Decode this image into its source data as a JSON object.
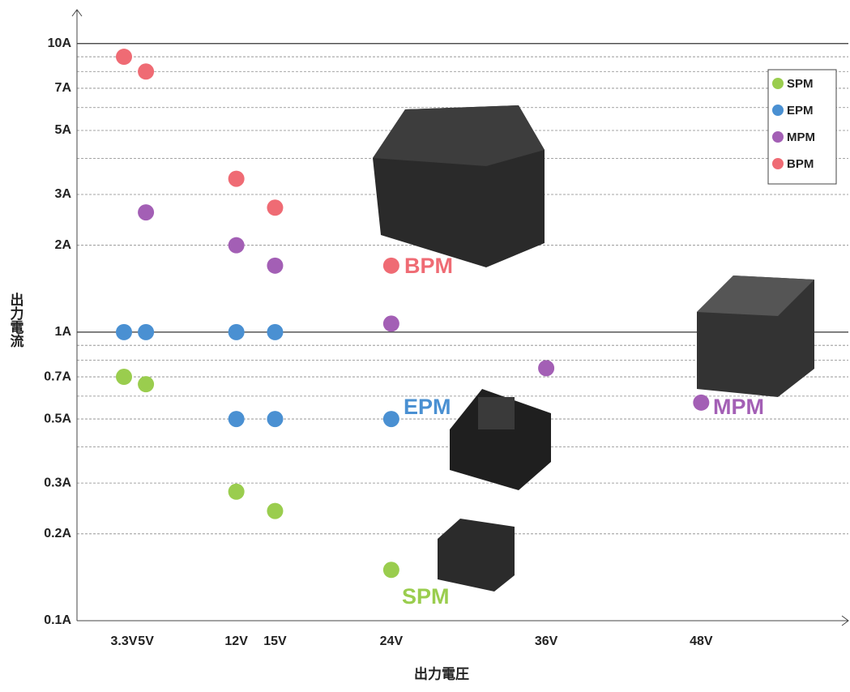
{
  "chart_data": {
    "type": "scatter",
    "ylabel": "出力電流",
    "xlabel": "出力電圧",
    "log_y": true,
    "grid": true,
    "legend": "top-right",
    "xlim": [
      -0.34,
      59.4
    ],
    "ylim": [
      0.1,
      13.1
    ],
    "xticks": [
      {
        "value": 3.3,
        "label": "3.3V"
      },
      {
        "value": 5,
        "label": "5V"
      },
      {
        "value": 12,
        "label": "12V"
      },
      {
        "value": 15,
        "label": "15V"
      },
      {
        "value": 24,
        "label": "24V"
      },
      {
        "value": 36,
        "label": "36V"
      },
      {
        "value": 48,
        "label": "48V"
      }
    ],
    "yticks": [
      {
        "value": 0.1,
        "label": "0.1A"
      },
      {
        "value": 0.2,
        "label": "0.2A"
      },
      {
        "value": 0.3,
        "label": "0.3A"
      },
      {
        "value": 0.5,
        "label": "0.5A"
      },
      {
        "value": 0.7,
        "label": "0.7A"
      },
      {
        "value": 1,
        "label": "1A"
      },
      {
        "value": 2,
        "label": "2A"
      },
      {
        "value": 3,
        "label": "3A"
      },
      {
        "value": 5,
        "label": "5A"
      },
      {
        "value": 7,
        "label": "7A"
      },
      {
        "value": 10,
        "label": "10A"
      }
    ],
    "minor_gridlines": [
      0.4,
      0.6,
      0.8,
      0.9,
      4,
      6,
      8,
      9
    ],
    "series": [
      {
        "name": "SPM",
        "color": "#9acd4e",
        "x": [
          3.3,
          5,
          12,
          15,
          24
        ],
        "values": [
          0.7,
          0.66,
          0.28,
          0.24,
          0.15
        ]
      },
      {
        "name": "EPM",
        "color": "#4a90d2",
        "x": [
          3.3,
          5,
          12,
          15,
          12,
          15,
          24
        ],
        "values": [
          1,
          1,
          1,
          1,
          0.5,
          0.5,
          0.5
        ]
      },
      {
        "name": "MPM",
        "color": "#a35fb5",
        "x": [
          5,
          12,
          15,
          24,
          36,
          48
        ],
        "values": [
          2.6,
          2,
          1.7,
          1.07,
          0.75,
          0.57
        ]
      },
      {
        "name": "BPM",
        "color": "#ef6b74",
        "x": [
          3.3,
          5,
          12,
          15,
          24
        ],
        "values": [
          9,
          8,
          3.4,
          2.7,
          1.7
        ]
      }
    ]
  }
}
